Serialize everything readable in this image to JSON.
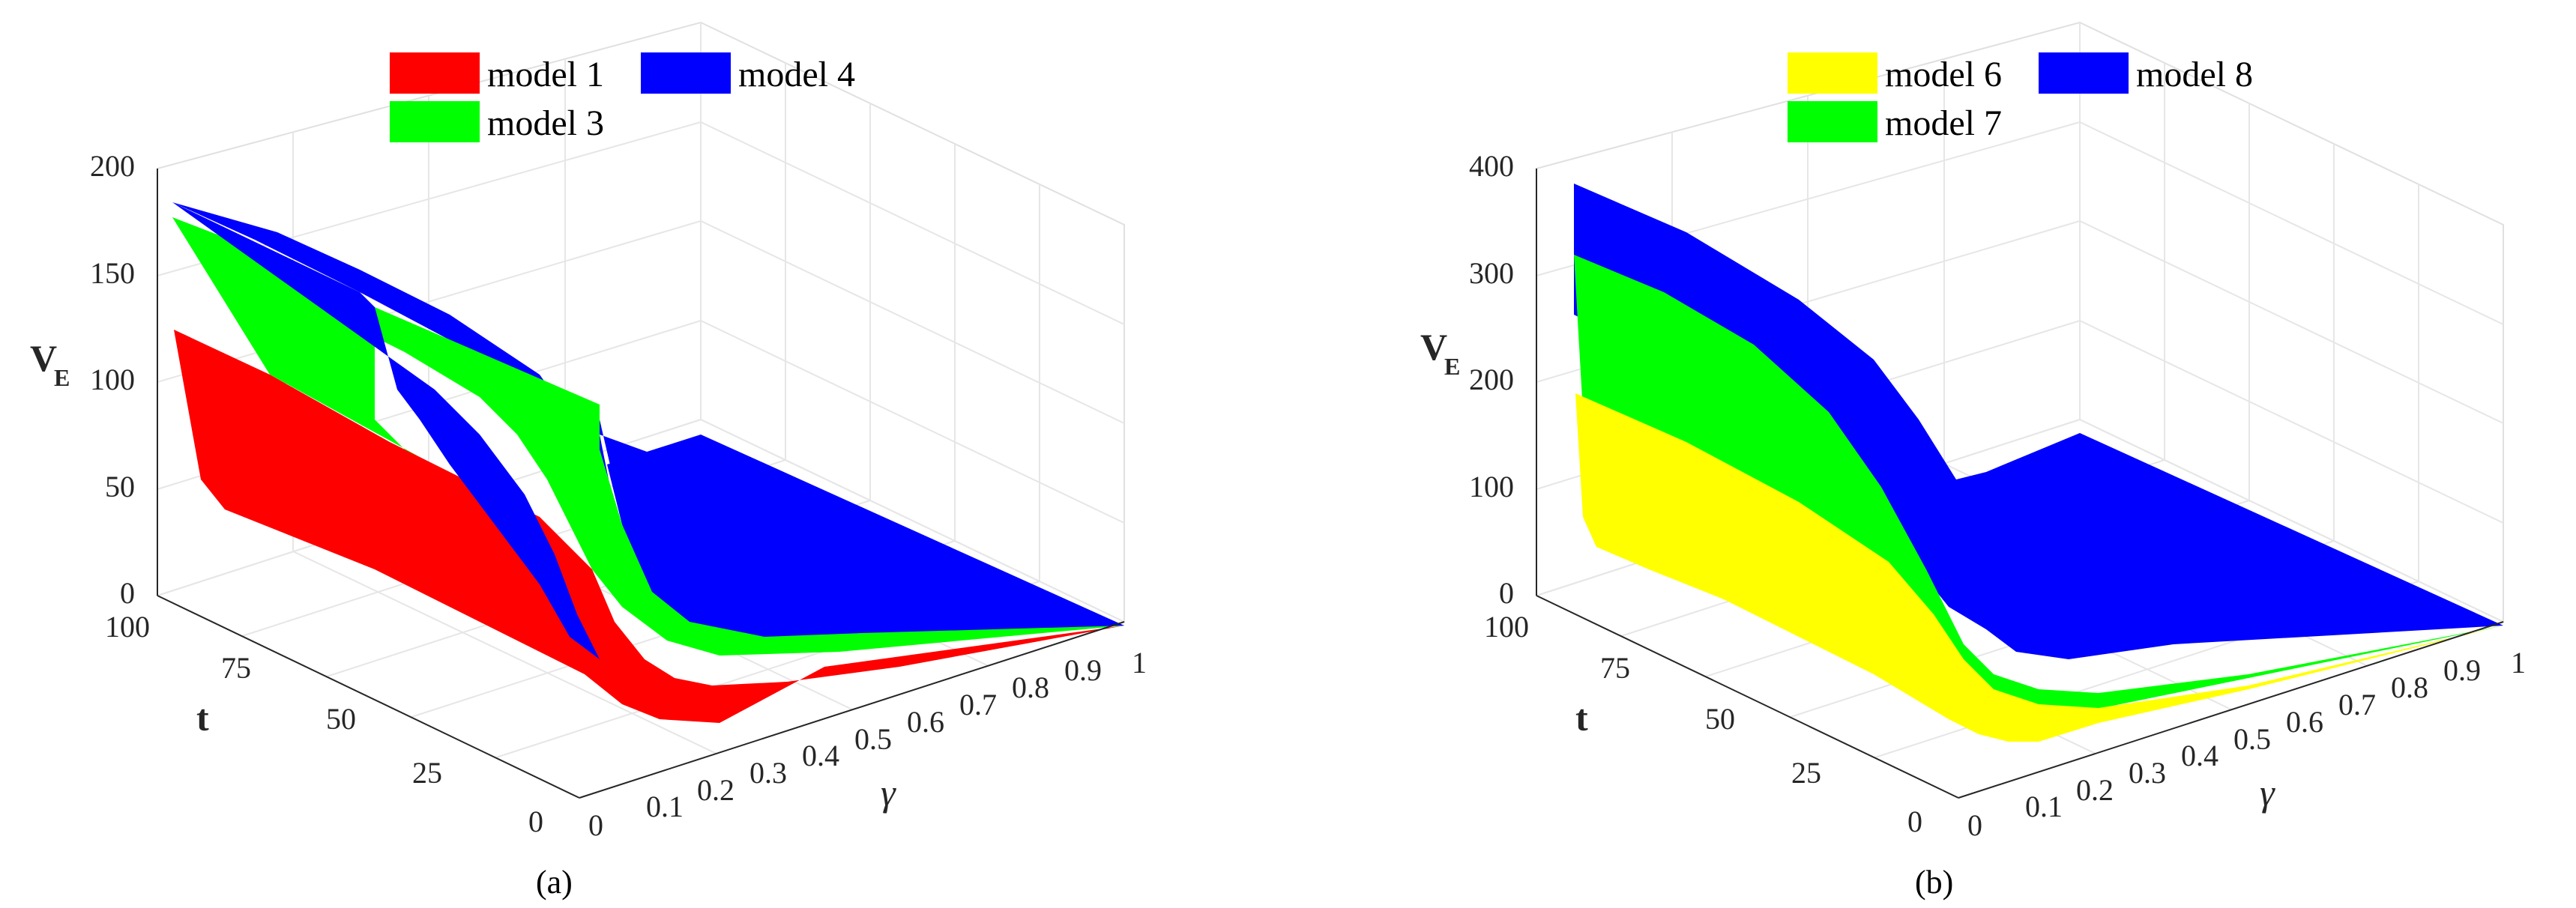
{
  "panels": [
    {
      "caption": "(a)",
      "zlabel_main": "V",
      "zlabel_sub": "E",
      "ylabel": "t",
      "xlabel": "γ",
      "z_ticks": [
        "0",
        "50",
        "100",
        "150",
        "200"
      ],
      "t_ticks": [
        "0",
        "25",
        "50",
        "75",
        "100"
      ],
      "g_ticks": [
        "0",
        "0.1",
        "0.2",
        "0.3",
        "0.4",
        "0.5",
        "0.6",
        "0.7",
        "0.8",
        "0.9",
        "1"
      ],
      "legend": [
        {
          "label": "model 1",
          "color": "#ff0000"
        },
        {
          "label": "model 4",
          "color": "#0000ff"
        },
        {
          "label": "model 3",
          "color": "#00ff00"
        }
      ]
    },
    {
      "caption": "(b)",
      "zlabel_main": "V",
      "zlabel_sub": "E",
      "ylabel": "t",
      "xlabel": "γ",
      "z_ticks": [
        "0",
        "100",
        "200",
        "300",
        "400"
      ],
      "t_ticks": [
        "0",
        "25",
        "50",
        "75",
        "100"
      ],
      "g_ticks": [
        "0",
        "0.1",
        "0.2",
        "0.3",
        "0.4",
        "0.5",
        "0.6",
        "0.7",
        "0.8",
        "0.9",
        "1"
      ],
      "legend": [
        {
          "label": "model 6",
          "color": "#ffff00"
        },
        {
          "label": "model 8",
          "color": "#0000ff"
        },
        {
          "label": "model 7",
          "color": "#00ff00"
        }
      ]
    }
  ],
  "chart_data": [
    {
      "type": "surface",
      "zlim": [
        0,
        200
      ],
      "tlim": [
        0,
        100
      ],
      "glim": [
        0,
        1
      ],
      "series": [
        {
          "name": "model 1",
          "color": "#ff0000",
          "peak_values_at_t100": [
            {
              "gamma": 0.0,
              "value": 125
            },
            {
              "gamma": 0.01,
              "value": 55
            }
          ],
          "near_zero_from_gamma": 0.3
        },
        {
          "name": "model 3",
          "color": "#00ff00",
          "peak_values_at_t100": [
            {
              "gamma": 0.0,
              "value": 175
            }
          ],
          "step_drop_near_gamma": 0.3
        },
        {
          "name": "model 4",
          "color": "#0000ff",
          "peak_values_at_t100": [
            {
              "gamma": 0.0,
              "value": 185
            }
          ],
          "near_zero_from_gamma": 0.35
        }
      ]
    },
    {
      "type": "surface",
      "zlim": [
        0,
        400
      ],
      "tlim": [
        0,
        100
      ],
      "glim": [
        0,
        1
      ],
      "series": [
        {
          "name": "model 6",
          "color": "#ffff00",
          "peak_values_at_t100": [
            {
              "gamma": 0.0,
              "value": 190
            },
            {
              "gamma": 0.01,
              "value": 80
            }
          ],
          "near_zero_from_gamma": 0.3
        },
        {
          "name": "model 7",
          "color": "#00ff00",
          "peak_values_at_t100": [
            {
              "gamma": 0.0,
              "value": 320
            }
          ],
          "near_zero_from_gamma": 0.3
        },
        {
          "name": "model 8",
          "color": "#0000ff",
          "peak_values_at_t100": [
            {
              "gamma": 0.0,
              "value": 385
            }
          ],
          "near_zero_from_gamma": 0.35
        }
      ]
    }
  ]
}
